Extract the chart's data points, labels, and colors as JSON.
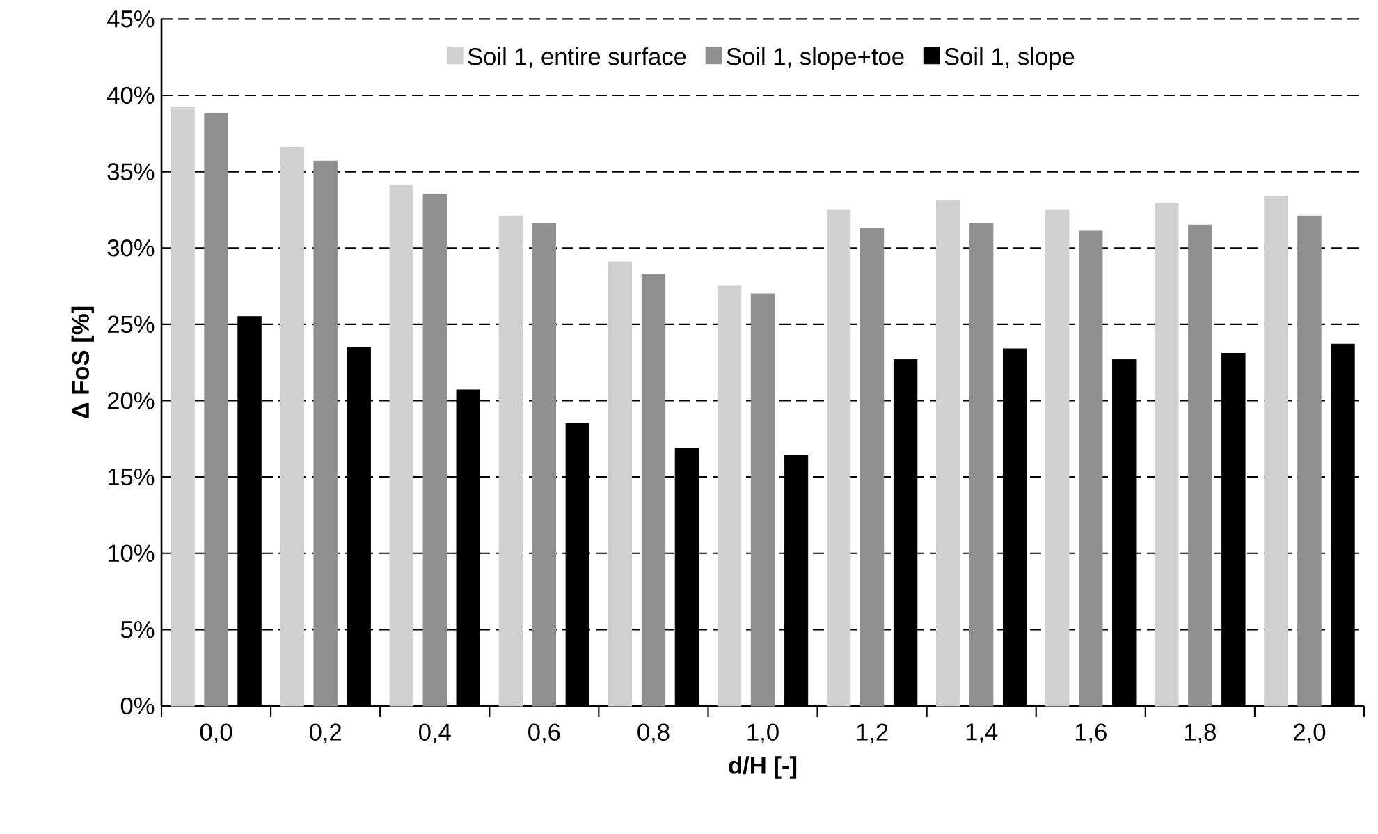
{
  "chart_data": {
    "type": "bar",
    "xlabel": "d/H [-]",
    "ylabel": "Δ FoS [%]",
    "categories": [
      "0,0",
      "0,2",
      "0,4",
      "0,6",
      "0,8",
      "1,0",
      "1,2",
      "1,4",
      "1,6",
      "1,8",
      "2,0"
    ],
    "series": [
      {
        "name": "Soil 1, entire surface",
        "color": "#d0d0d0",
        "values": [
          39.2,
          36.6,
          34.1,
          32.1,
          29.1,
          27.5,
          32.5,
          33.1,
          32.5,
          32.9,
          33.4
        ]
      },
      {
        "name": "Soil 1, slope+toe",
        "color": "#8f8f8f",
        "values": [
          38.8,
          35.7,
          33.5,
          31.6,
          28.3,
          27.0,
          31.3,
          31.6,
          31.1,
          31.5,
          32.1
        ]
      },
      {
        "name": "Soil 1, slope",
        "color": "#000000",
        "values": [
          25.5,
          23.5,
          20.7,
          18.5,
          16.9,
          16.4,
          22.7,
          23.4,
          22.7,
          23.1,
          23.7
        ]
      }
    ],
    "ylim": [
      0,
      45
    ],
    "yticks": [
      {
        "value": 0,
        "label": "0%"
      },
      {
        "value": 5,
        "label": "5%"
      },
      {
        "value": 10,
        "label": "10%"
      },
      {
        "value": 15,
        "label": "15%"
      },
      {
        "value": 20,
        "label": "20%"
      },
      {
        "value": 25,
        "label": "25%"
      },
      {
        "value": 30,
        "label": "30%"
      },
      {
        "value": 35,
        "label": "35%"
      },
      {
        "value": 40,
        "label": "40%"
      },
      {
        "value": 45,
        "label": "45%"
      }
    ],
    "grid": "y",
    "legend": "top"
  }
}
